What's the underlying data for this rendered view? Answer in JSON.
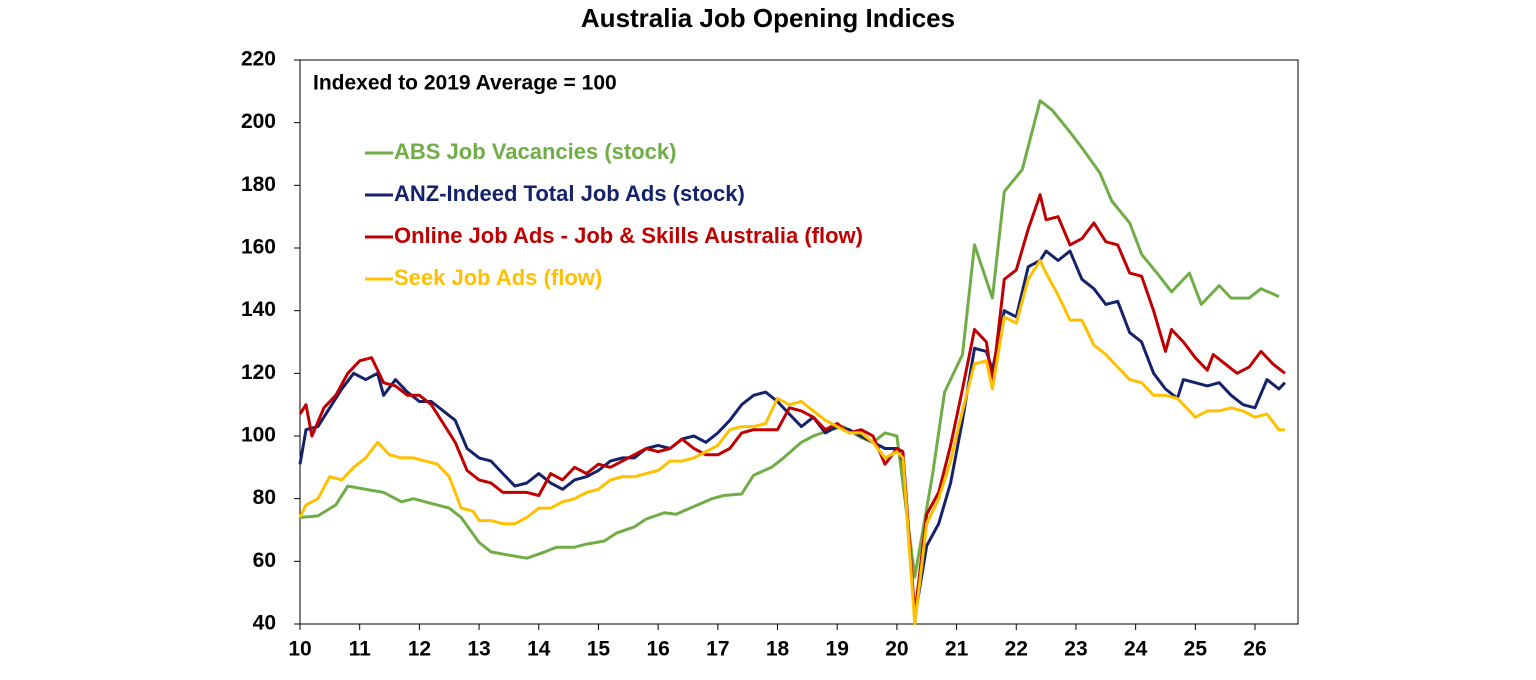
{
  "chart_data": {
    "type": "line",
    "title": "Australia Job Opening Indices",
    "annotation": "Indexed to 2019 Average = 100",
    "xlim": [
      10,
      26.72
    ],
    "xticks": [
      10,
      11,
      12,
      13,
      14,
      15,
      16,
      17,
      18,
      19,
      20,
      21,
      22,
      23,
      24,
      25,
      26
    ],
    "ylim": [
      40,
      220
    ],
    "yticks": [
      40,
      60,
      80,
      100,
      120,
      140,
      160,
      180,
      200,
      220
    ],
    "grid": false,
    "legend": "top-left",
    "series": [
      {
        "name": "ABS Job Vacancies (stock)",
        "color": "#70ad47",
        "x": [
          10,
          10.3,
          10.6,
          10.8,
          11.1,
          11.4,
          11.7,
          11.9,
          12.2,
          12.5,
          12.7,
          13,
          13.2,
          13.5,
          13.8,
          14.1,
          14.3,
          14.6,
          14.8,
          15.1,
          15.3,
          15.6,
          15.8,
          16.1,
          16.3,
          16.6,
          16.9,
          17.1,
          17.4,
          17.6,
          17.9,
          18.1,
          18.4,
          18.6,
          18.9,
          19.1,
          19.4,
          19.6,
          19.8,
          20,
          20.3,
          20.6,
          20.8,
          21.1,
          21.3,
          21.6,
          21.8,
          22.1,
          22.4,
          22.6,
          22.9,
          23.1,
          23.4,
          23.6,
          23.9,
          24.1,
          24.4,
          24.6,
          24.9,
          25.1,
          25.4,
          25.6,
          25.9,
          26.1,
          26.4
        ],
        "values": [
          74,
          74.5,
          78,
          84,
          83,
          82,
          79,
          80,
          78.5,
          77,
          74,
          66,
          63,
          62,
          61,
          63,
          64.5,
          64.5,
          65.5,
          66.5,
          69,
          71,
          73.5,
          75.5,
          75,
          77.5,
          80,
          81,
          81.5,
          87.5,
          90,
          93,
          98,
          100,
          102,
          103,
          99.5,
          98,
          101,
          100,
          55,
          88,
          114,
          126,
          161,
          144,
          178,
          185,
          207,
          204,
          197,
          192,
          184,
          175,
          168,
          158,
          151,
          146,
          152,
          142,
          148,
          144,
          144,
          147,
          144.5
        ]
      },
      {
        "name": "ANZ-Indeed Total Job Ads (stock)",
        "color": "#14226b",
        "x": [
          10,
          10.1,
          10.3,
          10.5,
          10.7,
          10.9,
          11.1,
          11.3,
          11.4,
          11.6,
          11.8,
          12,
          12.2,
          12.4,
          12.6,
          12.8,
          13,
          13.2,
          13.4,
          13.6,
          13.8,
          14,
          14.2,
          14.4,
          14.6,
          14.8,
          15,
          15.2,
          15.4,
          15.6,
          15.8,
          16,
          16.2,
          16.4,
          16.6,
          16.8,
          17,
          17.2,
          17.4,
          17.6,
          17.8,
          18,
          18.2,
          18.4,
          18.6,
          18.8,
          19,
          19.2,
          19.4,
          19.6,
          19.8,
          20,
          20.1,
          20.3,
          20.5,
          20.7,
          20.9,
          21.1,
          21.3,
          21.5,
          21.6,
          21.8,
          22,
          22.2,
          22.4,
          22.5,
          22.7,
          22.9,
          23.1,
          23.3,
          23.5,
          23.7,
          23.9,
          24.1,
          24.3,
          24.5,
          24.7,
          24.8,
          25,
          25.2,
          25.4,
          25.6,
          25.8,
          26,
          26.2,
          26.4,
          26.5
        ],
        "values": [
          91,
          102,
          103,
          109,
          115,
          120,
          118,
          120,
          113,
          118,
          114,
          111,
          111,
          108,
          105,
          96,
          93,
          92,
          88,
          84,
          85,
          88,
          85,
          83,
          86,
          87,
          89,
          92,
          93,
          93,
          96,
          97,
          96,
          99,
          100,
          98,
          101,
          105,
          110,
          113,
          114,
          111,
          107,
          103,
          106,
          101,
          103,
          102,
          100,
          98,
          96,
          96,
          92,
          42,
          65,
          72,
          85,
          105,
          128,
          127,
          121,
          140,
          138,
          154,
          156,
          159,
          156,
          159,
          150,
          147,
          142,
          143,
          133,
          130,
          120,
          115,
          112,
          118,
          117,
          116,
          117,
          113,
          110,
          109,
          118,
          115,
          117
        ]
      },
      {
        "name": "Online Job Ads - Job & Skills Australia (flow)",
        "color": "#c00000",
        "x": [
          10,
          10.1,
          10.2,
          10.4,
          10.6,
          10.8,
          11,
          11.2,
          11.4,
          11.6,
          11.8,
          12,
          12.2,
          12.4,
          12.6,
          12.8,
          13,
          13.2,
          13.4,
          13.6,
          13.8,
          14,
          14.2,
          14.4,
          14.6,
          14.8,
          15,
          15.2,
          15.4,
          15.6,
          15.8,
          16,
          16.2,
          16.4,
          16.6,
          16.8,
          17,
          17.2,
          17.4,
          17.6,
          17.8,
          18,
          18.2,
          18.4,
          18.6,
          18.8,
          19,
          19.2,
          19.4,
          19.6,
          19.8,
          20,
          20.1,
          20.3,
          20.5,
          20.7,
          20.9,
          21.1,
          21.3,
          21.5,
          21.6,
          21.8,
          22,
          22.2,
          22.4,
          22.5,
          22.7,
          22.9,
          23.1,
          23.3,
          23.5,
          23.7,
          23.9,
          24.1,
          24.3,
          24.5,
          24.6,
          24.8,
          25,
          25.2,
          25.3,
          25.5,
          25.7,
          25.9,
          26.1,
          26.3,
          26.5
        ],
        "values": [
          107,
          110,
          100,
          109,
          113,
          120,
          124,
          125,
          117,
          116,
          113,
          113,
          110,
          104,
          98,
          89,
          86,
          85,
          82,
          82,
          82,
          81,
          88,
          86,
          90,
          88,
          91,
          90,
          92,
          94,
          96,
          95,
          96,
          99,
          96,
          94,
          94,
          96,
          101,
          102,
          102,
          102,
          109,
          108,
          106,
          102,
          104,
          101,
          102,
          100,
          91,
          96,
          95,
          43,
          75,
          82,
          97,
          115,
          134,
          130,
          117,
          150,
          153,
          166,
          177,
          169,
          170,
          161,
          163,
          168,
          162,
          161,
          152,
          151,
          140,
          127,
          134,
          130,
          125,
          121,
          126,
          123,
          120,
          122,
          127,
          123,
          120
        ]
      },
      {
        "name": "Seek Job Ads (flow)",
        "color": "#ffc000",
        "x": [
          10,
          10.1,
          10.3,
          10.5,
          10.7,
          10.9,
          11.1,
          11.3,
          11.5,
          11.7,
          11.9,
          12.1,
          12.3,
          12.5,
          12.7,
          12.9,
          13,
          13.2,
          13.4,
          13.6,
          13.8,
          14,
          14.2,
          14.4,
          14.6,
          14.8,
          15,
          15.2,
          15.4,
          15.6,
          15.8,
          16,
          16.2,
          16.4,
          16.6,
          16.8,
          17,
          17.2,
          17.4,
          17.6,
          17.8,
          18,
          18.2,
          18.4,
          18.6,
          18.8,
          19,
          19.2,
          19.4,
          19.6,
          19.8,
          20,
          20.1,
          20.3,
          20.5,
          20.7,
          20.9,
          21.1,
          21.3,
          21.5,
          21.6,
          21.8,
          22,
          22.2,
          22.4,
          22.5,
          22.7,
          22.9,
          23.1,
          23.3,
          23.5,
          23.7,
          23.9,
          24.1,
          24.3,
          24.5,
          24.7,
          24.9,
          25,
          25.2,
          25.4,
          25.6,
          25.8,
          26,
          26.2,
          26.4,
          26.5
        ],
        "values": [
          74,
          78,
          80,
          87,
          86,
          90,
          93,
          98,
          94,
          93,
          93,
          92,
          91,
          87,
          77,
          76,
          73,
          73,
          72,
          72,
          74,
          77,
          77,
          79,
          80,
          82,
          83,
          86,
          87,
          87,
          88,
          89,
          92,
          92,
          93,
          95,
          97,
          102,
          103,
          103,
          104,
          112,
          110,
          111,
          108,
          105,
          103,
          101,
          101,
          98,
          93,
          95,
          93,
          40,
          72,
          80,
          92,
          108,
          123,
          124,
          115,
          138,
          136,
          150,
          156,
          152,
          145,
          137,
          137,
          129,
          126,
          122,
          118,
          117,
          113,
          113,
          112,
          108,
          106,
          108,
          108,
          109,
          108,
          106,
          107,
          102,
          102
        ]
      }
    ]
  }
}
